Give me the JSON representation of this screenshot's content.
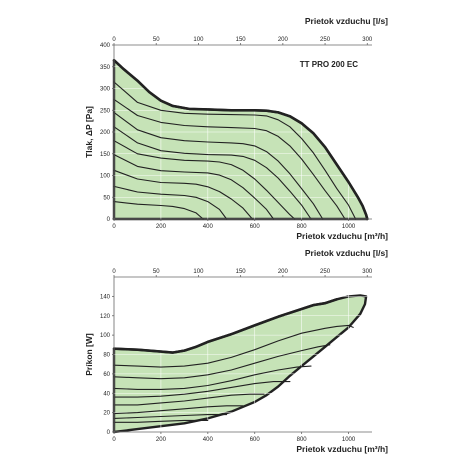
{
  "chart_data": [
    {
      "type": "line",
      "title": "TT PRO 200 EC",
      "xlabel": "Prietok vzduchu [m³/h]",
      "x2label": "Prietok vzduchu [l/s]",
      "ylabel": "Tlak, ΔP [Pa]",
      "xlim": [
        0,
        1100
      ],
      "x2lim": [
        0,
        305.6
      ],
      "ylim": [
        0,
        400
      ],
      "xticks": [
        "0",
        "200",
        "400",
        "600",
        "800",
        "1000"
      ],
      "x2ticks": [
        "0",
        "50",
        "100",
        "150",
        "200",
        "250",
        "300"
      ],
      "yticks": [
        "0",
        "50",
        "100",
        "150",
        "200",
        "250",
        "300",
        "350",
        "400"
      ],
      "envelope": [
        [
          0,
          365
        ],
        [
          40,
          345
        ],
        [
          100,
          318
        ],
        [
          150,
          292
        ],
        [
          200,
          272
        ],
        [
          250,
          260
        ],
        [
          320,
          253
        ],
        [
          400,
          252
        ],
        [
          500,
          250
        ],
        [
          600,
          250
        ],
        [
          650,
          249
        ],
        [
          700,
          245
        ],
        [
          750,
          236
        ],
        [
          800,
          220
        ],
        [
          850,
          197
        ],
        [
          900,
          165
        ],
        [
          950,
          125
        ],
        [
          1000,
          85
        ],
        [
          1040,
          50
        ],
        [
          1060,
          30
        ],
        [
          1075,
          10
        ],
        [
          1080,
          0
        ]
      ],
      "series": [
        {
          "values": [
            [
              0,
              315
            ],
            [
              100,
              268
            ],
            [
              200,
              250
            ],
            [
              300,
              243
            ],
            [
              400,
              241
            ],
            [
              500,
              240
            ],
            [
              600,
              239
            ],
            [
              650,
              237
            ],
            [
              700,
              228
            ],
            [
              750,
              212
            ],
            [
              800,
              185
            ],
            [
              850,
              152
            ],
            [
              900,
              112
            ],
            [
              950,
              70
            ],
            [
              1000,
              32
            ],
            [
              1030,
              0
            ]
          ]
        },
        {
          "values": [
            [
              0,
              275
            ],
            [
              100,
              238
            ],
            [
              200,
              222
            ],
            [
              300,
              215
            ],
            [
              400,
              212
            ],
            [
              500,
              210
            ],
            [
              600,
              208
            ],
            [
              650,
              203
            ],
            [
              700,
              190
            ],
            [
              750,
              168
            ],
            [
              800,
              138
            ],
            [
              850,
              102
            ],
            [
              900,
              65
            ],
            [
              950,
              30
            ],
            [
              985,
              0
            ]
          ]
        },
        {
          "values": [
            [
              0,
              245
            ],
            [
              100,
              205
            ],
            [
              200,
              187
            ],
            [
              300,
              180
            ],
            [
              400,
              177
            ],
            [
              500,
              175
            ],
            [
              550,
              173
            ],
            [
              600,
              168
            ],
            [
              650,
              155
            ],
            [
              700,
              133
            ],
            [
              750,
              104
            ],
            [
              800,
              70
            ],
            [
              850,
              35
            ],
            [
              890,
              0
            ]
          ]
        },
        {
          "values": [
            [
              0,
              212
            ],
            [
              100,
              175
            ],
            [
              200,
              157
            ],
            [
              300,
              151
            ],
            [
              400,
              148
            ],
            [
              500,
              147
            ],
            [
              550,
              144
            ],
            [
              600,
              135
            ],
            [
              650,
              118
            ],
            [
              700,
              94
            ],
            [
              750,
              64
            ],
            [
              800,
              32
            ],
            [
              840,
              0
            ]
          ]
        },
        {
          "values": [
            [
              0,
              180
            ],
            [
              100,
              150
            ],
            [
              200,
              140
            ],
            [
              300,
              135
            ],
            [
              400,
              133
            ],
            [
              450,
              131
            ],
            [
              500,
              125
            ],
            [
              550,
              112
            ],
            [
              600,
              92
            ],
            [
              650,
              66
            ],
            [
              700,
              38
            ],
            [
              750,
              10
            ],
            [
              770,
              0
            ]
          ]
        },
        {
          "values": [
            [
              0,
              148
            ],
            [
              100,
              121
            ],
            [
              200,
              111
            ],
            [
              300,
              108
            ],
            [
              400,
              106
            ],
            [
              450,
              101
            ],
            [
              500,
              90
            ],
            [
              550,
              72
            ],
            [
              600,
              48
            ],
            [
              650,
              22
            ],
            [
              680,
              0
            ]
          ]
        },
        {
          "values": [
            [
              0,
              112
            ],
            [
              100,
              92
            ],
            [
              200,
              84
            ],
            [
              300,
              82
            ],
            [
              350,
              80
            ],
            [
              400,
              74
            ],
            [
              450,
              63
            ],
            [
              500,
              46
            ],
            [
              550,
              25
            ],
            [
              590,
              0
            ]
          ]
        },
        {
          "values": [
            [
              0,
              75
            ],
            [
              100,
              62
            ],
            [
              200,
              57
            ],
            [
              300,
              54
            ],
            [
              350,
              50
            ],
            [
              400,
              40
            ],
            [
              450,
              22
            ],
            [
              480,
              0
            ]
          ]
        },
        {
          "values": [
            [
              0,
              40
            ],
            [
              100,
              34
            ],
            [
              200,
              31
            ],
            [
              250,
              29
            ],
            [
              300,
              24
            ],
            [
              350,
              14
            ],
            [
              380,
              0
            ]
          ]
        }
      ]
    },
    {
      "type": "line",
      "xlabel": "Prietok vzduchu [m³/h]",
      "x2label": "Prietok vzduchu [l/s]",
      "ylabel": "Príkon [W]",
      "xlim": [
        0,
        1100
      ],
      "x2lim": [
        0,
        305.6
      ],
      "ylim": [
        0,
        160
      ],
      "xticks": [
        "0",
        "200",
        "400",
        "600",
        "800",
        "1000"
      ],
      "x2ticks": [
        "0",
        "50",
        "100",
        "150",
        "200",
        "250",
        "300"
      ],
      "yticks": [
        "0",
        "20",
        "40",
        "60",
        "80",
        "100",
        "120",
        "140"
      ],
      "envelope": [
        [
          0,
          86
        ],
        [
          100,
          85
        ],
        [
          200,
          83
        ],
        [
          250,
          82
        ],
        [
          300,
          84
        ],
        [
          350,
          88
        ],
        [
          400,
          93
        ],
        [
          500,
          101
        ],
        [
          600,
          110
        ],
        [
          700,
          119
        ],
        [
          800,
          127
        ],
        [
          850,
          131
        ],
        [
          900,
          133
        ],
        [
          950,
          137
        ],
        [
          1000,
          140
        ],
        [
          1050,
          141
        ],
        [
          1075,
          140
        ],
        [
          1070,
          132
        ],
        [
          1050,
          122
        ],
        [
          1000,
          108
        ],
        [
          950,
          98
        ],
        [
          900,
          88
        ],
        [
          850,
          78
        ],
        [
          800,
          68
        ],
        [
          750,
          58
        ],
        [
          700,
          47
        ],
        [
          650,
          38
        ],
        [
          600,
          31
        ],
        [
          500,
          21
        ],
        [
          400,
          14
        ],
        [
          300,
          9
        ],
        [
          200,
          6
        ],
        [
          100,
          3
        ],
        [
          0,
          0
        ]
      ],
      "series": [
        {
          "values": [
            [
              0,
              69
            ],
            [
              100,
              68
            ],
            [
              200,
              67
            ],
            [
              300,
              68
            ],
            [
              400,
              71
            ],
            [
              500,
              77
            ],
            [
              600,
              85
            ],
            [
              700,
              94
            ],
            [
              800,
              102
            ],
            [
              900,
              107
            ],
            [
              950,
              109
            ],
            [
              1000,
              110
            ],
            [
              1020,
              108
            ]
          ]
        },
        {
          "values": [
            [
              0,
              57
            ],
            [
              100,
              56
            ],
            [
              200,
              55
            ],
            [
              300,
              56
            ],
            [
              400,
              59
            ],
            [
              500,
              64
            ],
            [
              600,
              71
            ],
            [
              700,
              78
            ],
            [
              800,
              84
            ],
            [
              870,
              88
            ],
            [
              920,
              90
            ]
          ]
        },
        {
          "values": [
            [
              0,
              45
            ],
            [
              100,
              44
            ],
            [
              200,
              44
            ],
            [
              300,
              45
            ],
            [
              400,
              48
            ],
            [
              500,
              53
            ],
            [
              600,
              59
            ],
            [
              700,
              64
            ],
            [
              780,
              67
            ],
            [
              840,
              68
            ]
          ]
        },
        {
          "values": [
            [
              0,
              36
            ],
            [
              100,
              36
            ],
            [
              200,
              37
            ],
            [
              300,
              39
            ],
            [
              400,
              42
            ],
            [
              500,
              46
            ],
            [
              600,
              50
            ],
            [
              680,
              52
            ],
            [
              750,
              52
            ]
          ]
        },
        {
          "values": [
            [
              0,
              28
            ],
            [
              100,
              28
            ],
            [
              200,
              30
            ],
            [
              300,
              32
            ],
            [
              400,
              35
            ],
            [
              500,
              38
            ],
            [
              580,
              39
            ],
            [
              640,
              39
            ]
          ]
        },
        {
          "values": [
            [
              0,
              19
            ],
            [
              100,
              20
            ],
            [
              200,
              22
            ],
            [
              300,
              24
            ],
            [
              400,
              26
            ],
            [
              480,
              27
            ],
            [
              550,
              27
            ]
          ]
        },
        {
          "values": [
            [
              0,
              14
            ],
            [
              100,
              15
            ],
            [
              200,
              16
            ],
            [
              300,
              17
            ],
            [
              400,
              18
            ],
            [
              480,
              18
            ]
          ]
        },
        {
          "values": [
            [
              0,
              10
            ],
            [
              100,
              10
            ],
            [
              200,
              11
            ],
            [
              300,
              12
            ],
            [
              400,
              12
            ]
          ]
        }
      ]
    }
  ]
}
